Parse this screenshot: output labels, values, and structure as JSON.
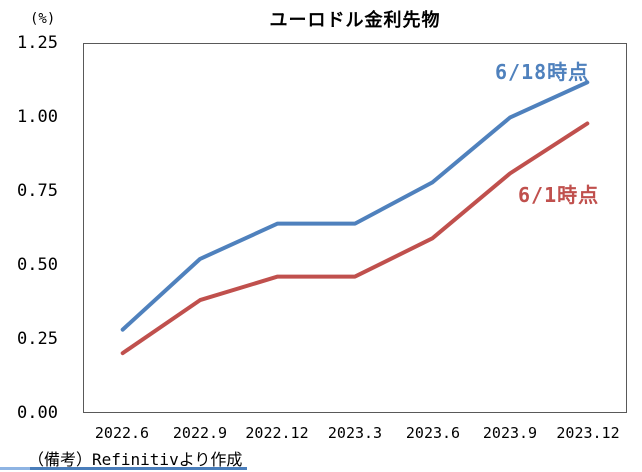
{
  "title": "ユーロドル金利先物",
  "unit_label": "(%)",
  "footer": {
    "note": "（備考）Refinitivより作成"
  },
  "colors": {
    "series_blue": "#4F81BD",
    "series_red": "#C0504D",
    "axis_frame": "#595959",
    "footer_underline": "#4A7EBB",
    "footer_underline_light": "#8EB4E3"
  },
  "chart_data": {
    "type": "line",
    "title": "ユーロドル金利先物",
    "unit": "(%)",
    "categories": [
      "2022.6",
      "2022.9",
      "2022.12",
      "2023.3",
      "2023.6",
      "2023.9",
      "2023.12"
    ],
    "series": [
      {
        "name": "6/18時点",
        "color": "#4F81BD",
        "values": [
          0.28,
          0.52,
          0.64,
          0.64,
          0.78,
          1.0,
          1.12
        ]
      },
      {
        "name": "6/1時点",
        "color": "#C0504D",
        "values": [
          0.2,
          0.38,
          0.46,
          0.46,
          0.59,
          0.81,
          0.98
        ]
      }
    ],
    "ylim": [
      0,
      1.25
    ],
    "ytick_labels": [
      "1.25",
      "1.00",
      "0.75",
      "0.50",
      "0.25",
      "0.00"
    ],
    "xlabel": "",
    "ylabel": "(%)",
    "grid": false,
    "legend_position": "inline-labels"
  }
}
